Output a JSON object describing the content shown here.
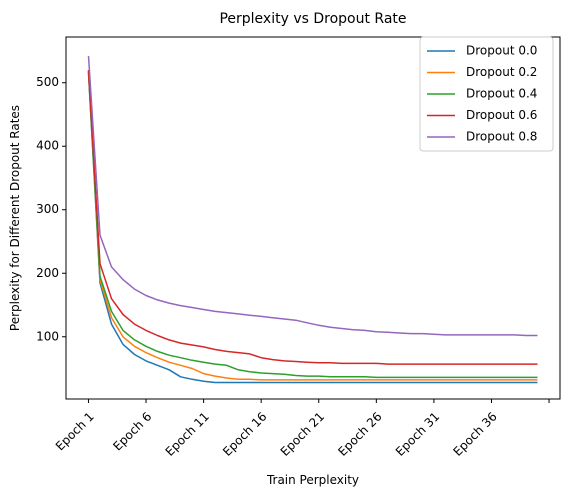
{
  "chart_data": {
    "type": "line",
    "title": "Perplexity vs Dropout Rate",
    "xlabel": "Train Perplexity",
    "ylabel": "Perplexity for Different Dropout Rates",
    "x": [
      1,
      2,
      3,
      4,
      5,
      6,
      7,
      8,
      9,
      10,
      11,
      12,
      13,
      14,
      15,
      16,
      17,
      18,
      19,
      20,
      21,
      22,
      23,
      24,
      25,
      26,
      27,
      28,
      29,
      30,
      31,
      32,
      33,
      34,
      35,
      36,
      37,
      38,
      39,
      40
    ],
    "x_tick_labels": [
      "Epoch 1",
      "Epoch 6",
      "Epoch 11",
      "Epoch 16",
      "Epoch 21",
      "Epoch 26",
      "Epoch 31",
      "Epoch 36",
      ""
    ],
    "x_tick_values": [
      1,
      6,
      11,
      16,
      21,
      26,
      31,
      36,
      41
    ],
    "xlim": [
      -0.95,
      41.95
    ],
    "ylim": [
      2,
      572
    ],
    "y_ticks": [
      100,
      200,
      300,
      400,
      500
    ],
    "grid": false,
    "legend_position": "upper right",
    "series": [
      {
        "name": "Dropout 0.0",
        "color": "#1f77b4",
        "values": [
          515,
          185,
          120,
          88,
          72,
          62,
          55,
          48,
          37,
          33,
          30,
          28,
          28,
          28,
          28,
          28,
          28,
          28,
          28,
          28,
          28,
          28,
          28,
          28,
          28,
          28,
          28,
          28,
          28,
          28,
          28,
          28,
          28,
          28,
          28,
          28,
          28,
          28,
          28,
          28
        ]
      },
      {
        "name": "Dropout 0.2",
        "color": "#ff7f0e",
        "values": [
          518,
          190,
          130,
          100,
          85,
          75,
          67,
          60,
          55,
          50,
          42,
          38,
          35,
          33,
          33,
          32,
          32,
          32,
          32,
          32,
          32,
          32,
          32,
          32,
          32,
          32,
          32,
          32,
          32,
          32,
          32,
          32,
          32,
          32,
          32,
          32,
          32,
          32,
          32,
          32
        ]
      },
      {
        "name": "Dropout 0.4",
        "color": "#2ca02c",
        "values": [
          518,
          195,
          140,
          110,
          95,
          85,
          77,
          71,
          67,
          63,
          60,
          57,
          55,
          48,
          45,
          43,
          42,
          41,
          39,
          38,
          38,
          37,
          37,
          37,
          37,
          36,
          36,
          36,
          36,
          36,
          36,
          36,
          36,
          36,
          36,
          36,
          36,
          36,
          36,
          36
        ]
      },
      {
        "name": "Dropout 0.6",
        "color": "#d62728",
        "values": [
          520,
          215,
          160,
          135,
          120,
          110,
          102,
          95,
          90,
          87,
          84,
          80,
          77,
          75,
          73,
          67,
          64,
          62,
          61,
          60,
          59,
          59,
          58,
          58,
          58,
          58,
          57,
          57,
          57,
          57,
          57,
          57,
          57,
          57,
          57,
          57,
          57,
          57,
          57,
          57
        ]
      },
      {
        "name": "Dropout 0.8",
        "color": "#9467bd",
        "values": [
          542,
          260,
          210,
          190,
          175,
          165,
          158,
          153,
          149,
          146,
          143,
          140,
          138,
          136,
          134,
          132,
          130,
          128,
          126,
          122,
          118,
          115,
          113,
          111,
          110,
          108,
          107,
          106,
          105,
          105,
          104,
          103,
          103,
          103,
          103,
          103,
          103,
          103,
          102,
          102
        ]
      }
    ]
  }
}
